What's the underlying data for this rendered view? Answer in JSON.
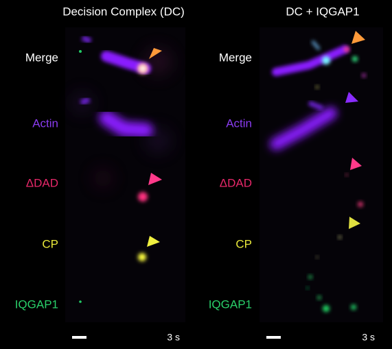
{
  "columns": [
    {
      "title": "Decision Complex (DC)",
      "time": "3 s"
    },
    {
      "title": "DC + IQGAP1",
      "time": "3 s"
    }
  ],
  "rows": [
    "Merge",
    "Actin",
    "ΔDAD",
    "CP",
    "IQGAP1"
  ]
}
